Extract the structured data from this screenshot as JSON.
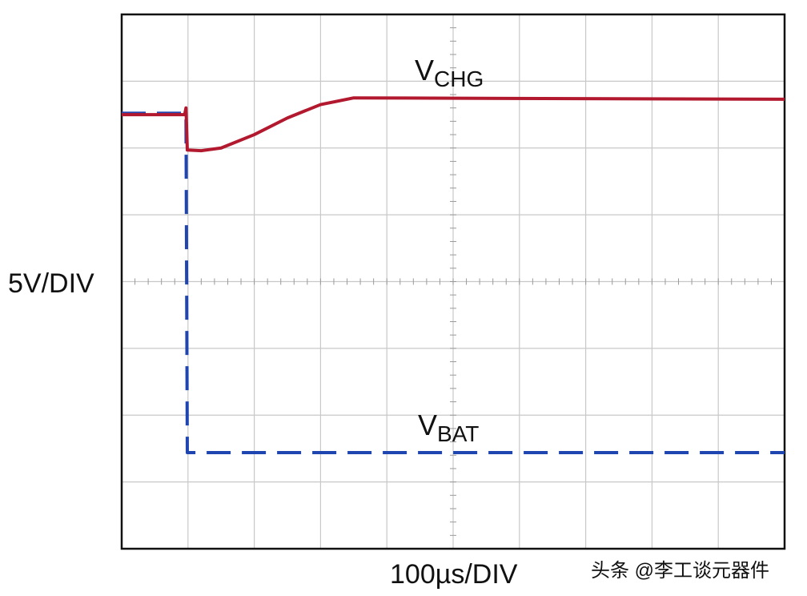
{
  "chart_data": {
    "type": "line",
    "y_axis_label": "5V/DIV",
    "x_axis_label": "100µs/DIV",
    "xlim": [
      0,
      10
    ],
    "ylim": [
      0,
      8
    ],
    "xticks": [
      0,
      1,
      2,
      3,
      4,
      5,
      6,
      7,
      8,
      9,
      10
    ],
    "yticks": [
      0,
      1,
      2,
      3,
      4,
      5,
      6,
      7,
      8
    ],
    "grid": true,
    "series": [
      {
        "name": "VCHG",
        "color": "#b3192e",
        "dashed": false,
        "x": [
          0,
          0.95,
          0.97,
          0.99,
          1.2,
          1.5,
          2.0,
          2.5,
          3.0,
          3.5,
          10
        ],
        "values": [
          6.5,
          6.5,
          6.6,
          5.97,
          5.96,
          6.0,
          6.2,
          6.45,
          6.65,
          6.75,
          6.73
        ]
      },
      {
        "name": "VBAT",
        "color": "#1f45b0",
        "dashed": true,
        "x": [
          0,
          0.97,
          0.99,
          10
        ],
        "values": [
          6.52,
          6.52,
          1.44,
          1.44
        ]
      }
    ],
    "watermark": "头条 @李工谈元器件"
  }
}
